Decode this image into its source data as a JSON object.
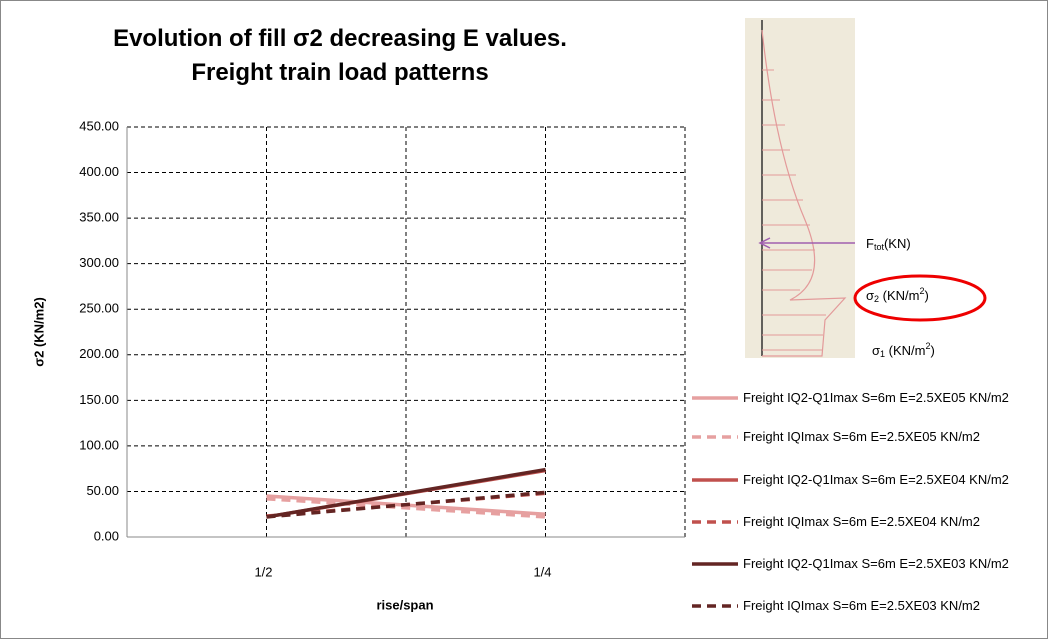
{
  "chart_data": {
    "type": "line",
    "title": "Evolution of fill σ2 decreasing E values. Freight train load patterns",
    "x_label": "rise/span",
    "y_label": "σ2 (KN/m2)",
    "categories": [
      "1/2",
      "1/4"
    ],
    "ylim": [
      0,
      450
    ],
    "yticks": [
      {
        "value": 0,
        "label": "0.00"
      },
      {
        "value": 50,
        "label": "50.00"
      },
      {
        "value": 100,
        "label": "100.00"
      },
      {
        "value": 150,
        "label": "150.00"
      },
      {
        "value": 200,
        "label": "200.00"
      },
      {
        "value": 250,
        "label": "250.00"
      },
      {
        "value": 300,
        "label": "300.00"
      },
      {
        "value": 350,
        "label": "350.00"
      },
      {
        "value": 400,
        "label": "400.00"
      },
      {
        "value": 450,
        "label": "450.00"
      }
    ],
    "grid": true,
    "legend": "right",
    "series": [
      {
        "name": "Freight IQ2-Q1Imax S=6m E=2.5XE05 KN/m2",
        "color": "#e6a0a0",
        "dash": false,
        "values": [
          45,
          25
        ]
      },
      {
        "name": "Freight IQImax S=6m E=2.5XE05 KN/m2",
        "color": "#e6a0a0",
        "dash": true,
        "values": [
          42,
          22
        ]
      },
      {
        "name": "Freight IQ2-Q1Imax S=6m E=2.5XE04 KN/m2",
        "color": "#c0504d",
        "dash": false,
        "values": [
          22,
          73
        ]
      },
      {
        "name": "Freight IQImax S=6m E=2.5XE04 KN/m2",
        "color": "#c0504d",
        "dash": true,
        "values": [
          23,
          48
        ]
      },
      {
        "name": "Freight IQ2-Q1Imax S=6m E=2.5XE03 KN/m2",
        "color": "#632523",
        "dash": false,
        "values": [
          22,
          74
        ]
      },
      {
        "name": "Freight IQImax S=6m E=2.5XE03 KN/m2",
        "color": "#632523",
        "dash": true,
        "values": [
          22,
          49
        ]
      }
    ],
    "inset_labels": [
      [
        "F",
        "tot",
        "(KN)"
      ],
      [
        "σ",
        "2",
        " (KN/m",
        "2",
        ")"
      ],
      [
        "σ",
        "1",
        " (KN/m",
        "2",
        ")"
      ]
    ]
  }
}
